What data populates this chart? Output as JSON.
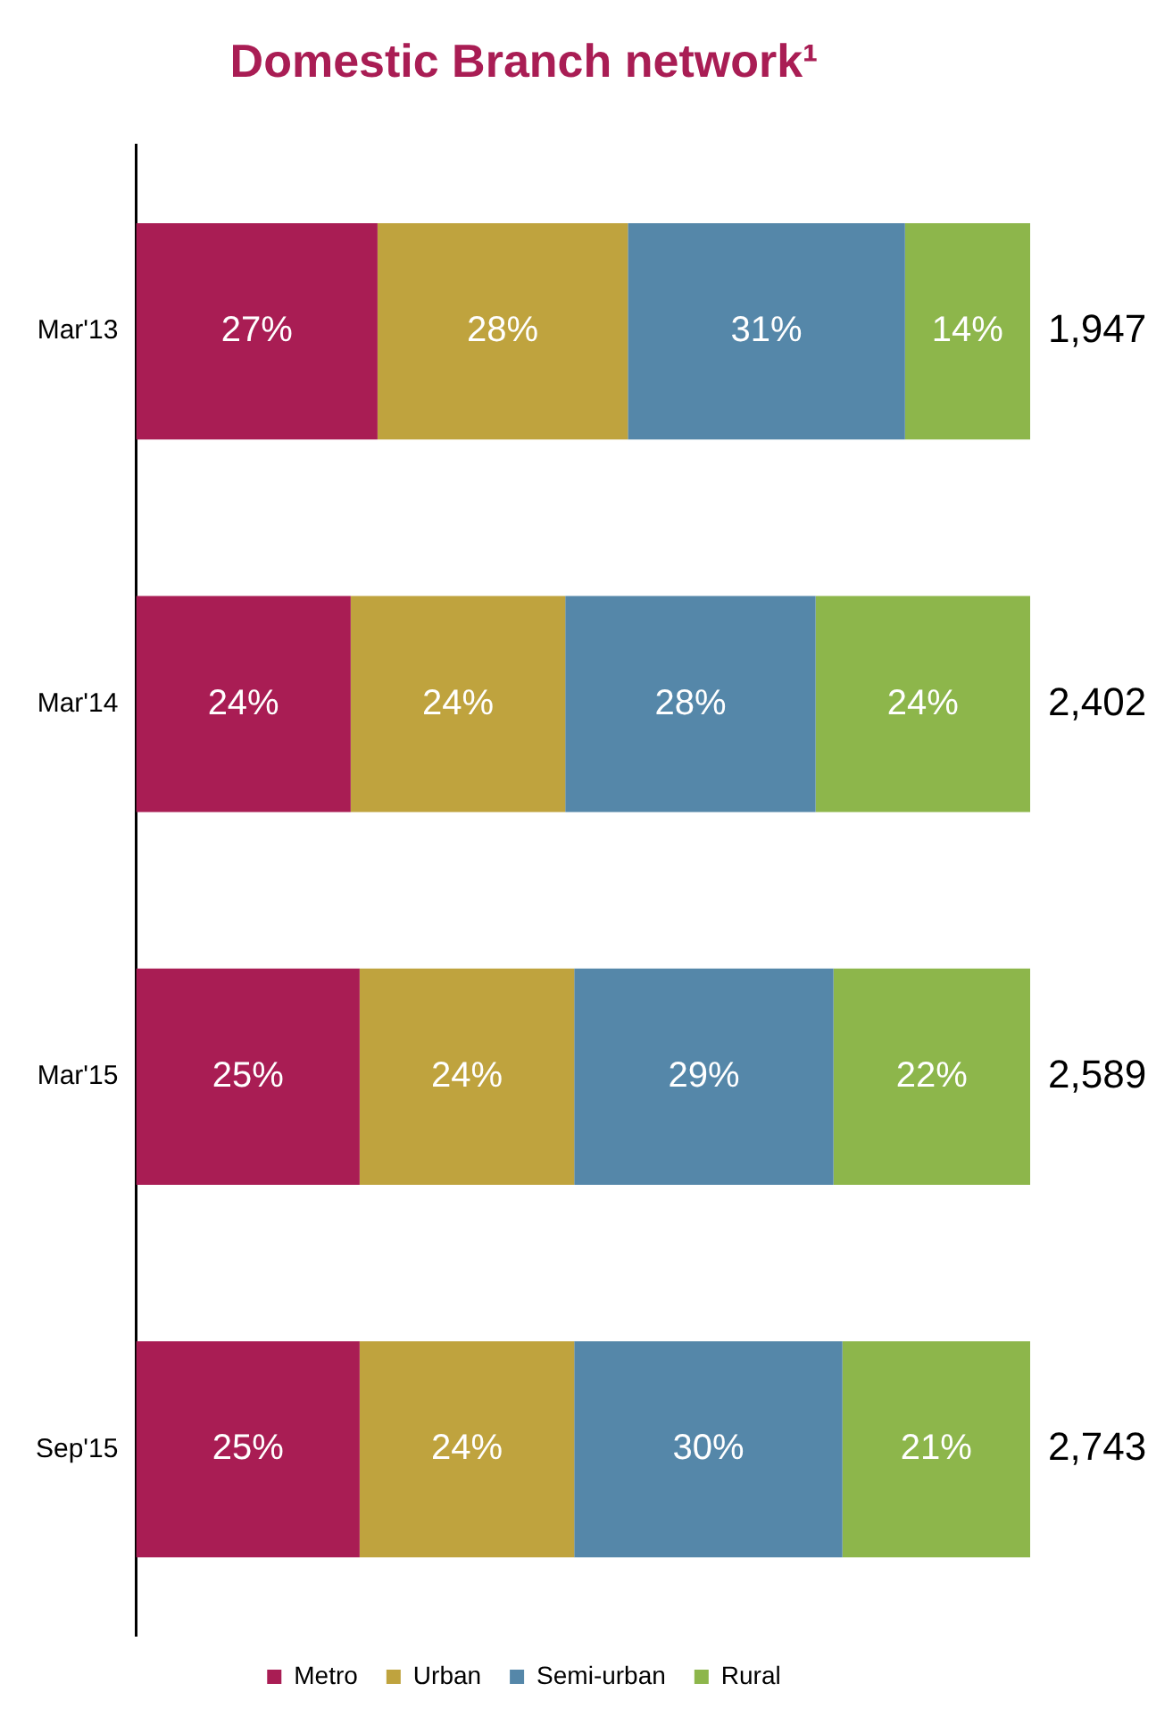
{
  "chart_data": {
    "type": "bar",
    "stacked": true,
    "orientation": "horizontal",
    "title": "Domestic Branch network¹",
    "categories": [
      "Mar'13",
      "Mar'14",
      "Mar'15",
      "Sep'15"
    ],
    "series": [
      {
        "name": "Metro",
        "color": "#a91d54",
        "values": [
          27,
          24,
          25,
          25
        ],
        "value_labels": [
          "27%",
          "24%",
          "25%",
          "25%"
        ]
      },
      {
        "name": "Urban",
        "color": "#bfa33e",
        "values": [
          28,
          24,
          24,
          24
        ],
        "value_labels": [
          "28%",
          "24%",
          "24%",
          "24%"
        ]
      },
      {
        "name": "Semi-urban",
        "color": "#5587a9",
        "values": [
          31,
          28,
          29,
          30
        ],
        "value_labels": [
          "31%",
          "28%",
          "29%",
          "30%"
        ]
      },
      {
        "name": "Rural",
        "color": "#8db64b",
        "values": [
          14,
          24,
          22,
          21
        ],
        "value_labels": [
          "14%",
          "24%",
          "22%",
          "21%"
        ]
      }
    ],
    "annotations": [
      "1,947",
      "2,402",
      "2,589",
      "2,743"
    ],
    "legend": "bottom",
    "tick_labels": "y"
  }
}
